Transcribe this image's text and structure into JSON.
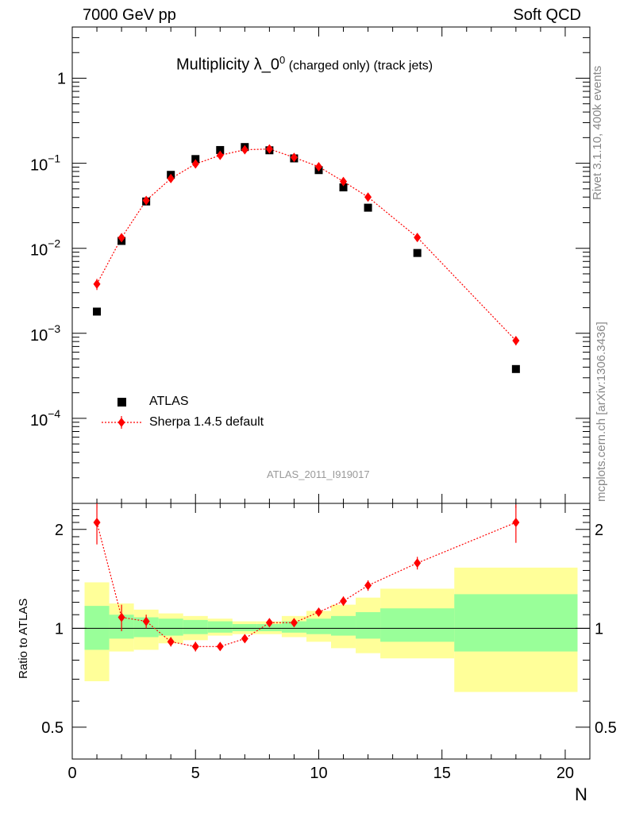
{
  "header": {
    "left": "7000 GeV pp",
    "right": "Soft QCD"
  },
  "side_labels": {
    "upper": "Rivet 3.1.10,  400k events",
    "lower": "mcplots.cern.ch [arXiv:1306.3436]"
  },
  "chart_data": [
    {
      "type": "scatter",
      "panel": "main",
      "title": "Multiplicity λ_0⁰ (charged only) (track jets)",
      "title_parts": {
        "main": "Multiplicity λ_0",
        "sup": "0",
        "rest": " (charged only) (track jets)"
      },
      "watermark": "ATLAS_2011_I919017",
      "xlabel": "N",
      "ylabel": "",
      "yscale": "log",
      "xlim": [
        0,
        21
      ],
      "ylim": [
        1e-05,
        4
      ],
      "y_ticks": [
        {
          "value": 1,
          "mant": "1",
          "exp": ""
        },
        {
          "value": 0.1,
          "mant": "10",
          "exp": "−1"
        },
        {
          "value": 0.01,
          "mant": "10",
          "exp": "−2"
        },
        {
          "value": 0.001,
          "mant": "10",
          "exp": "−3"
        },
        {
          "value": 0.0001,
          "mant": "10",
          "exp": "−4"
        }
      ],
      "legend": {
        "placement": "lower-left",
        "entries": [
          "ATLAS",
          "Sherpa 1.4.5 default"
        ]
      },
      "series": [
        {
          "name": "ATLAS",
          "marker": "square",
          "color": "#000000",
          "x": [
            1,
            2,
            3,
            4,
            5,
            6,
            7,
            8,
            9,
            10,
            11,
            12,
            14,
            18
          ],
          "values": [
            0.0018,
            0.0122,
            0.0355,
            0.073,
            0.112,
            0.143,
            0.155,
            0.142,
            0.114,
            0.083,
            0.052,
            0.03,
            0.0088,
            0.00038
          ]
        },
        {
          "name": "Sherpa 1.4.5 default",
          "marker": "diamond",
          "line": "dotted",
          "color": "#ff0000",
          "x": [
            1,
            2,
            3,
            4,
            5,
            6,
            7,
            8,
            9,
            10,
            11,
            12,
            14,
            18
          ],
          "values": [
            0.0038,
            0.0133,
            0.0365,
            0.066,
            0.098,
            0.124,
            0.144,
            0.147,
            0.117,
            0.091,
            0.061,
            0.04,
            0.0134,
            0.00082
          ],
          "err_rel": [
            0.15,
            0.06,
            0.05,
            0.04,
            0.03,
            0.03,
            0.03,
            0.03,
            0.03,
            0.03,
            0.04,
            0.04,
            0.05,
            0.12
          ]
        }
      ]
    },
    {
      "type": "scatter",
      "panel": "ratio",
      "xlabel": "N",
      "ylabel": "Ratio to ATLAS",
      "yscale": "log",
      "xlim": [
        0,
        21
      ],
      "ylim": [
        0.4,
        2.4
      ],
      "x_ticks": [
        0,
        5,
        10,
        15,
        20
      ],
      "y_ticks": [
        0.5,
        1,
        2
      ],
      "y_tick_labels": [
        "0.5",
        "1",
        "2"
      ],
      "bands": {
        "edges": [
          0.5,
          1.5,
          2.5,
          3.5,
          4.5,
          5.5,
          6.5,
          7.5,
          8.5,
          9.5,
          10.5,
          11.5,
          12.5,
          15.5,
          20.5
        ],
        "inner_lo": [
          0.86,
          0.93,
          0.94,
          0.95,
          0.96,
          0.97,
          0.98,
          0.98,
          0.97,
          0.96,
          0.95,
          0.93,
          0.91,
          0.85
        ],
        "inner_hi": [
          1.17,
          1.1,
          1.08,
          1.07,
          1.06,
          1.05,
          1.03,
          1.03,
          1.05,
          1.07,
          1.09,
          1.12,
          1.15,
          1.27
        ],
        "outer_lo": [
          0.69,
          0.85,
          0.86,
          0.9,
          0.92,
          0.95,
          0.96,
          0.96,
          0.94,
          0.91,
          0.87,
          0.84,
          0.81,
          0.64
        ],
        "outer_hi": [
          1.38,
          1.19,
          1.14,
          1.11,
          1.09,
          1.07,
          1.05,
          1.05,
          1.09,
          1.13,
          1.18,
          1.24,
          1.32,
          1.53
        ],
        "inner_color": "#99ff99",
        "outer_color": "#ffff99"
      },
      "series": [
        {
          "name": "Sherpa 1.4.5 default",
          "color": "#ff0000",
          "x": [
            1,
            2,
            3,
            4,
            5,
            6,
            7,
            8,
            9,
            10,
            11,
            12,
            14,
            18
          ],
          "values": [
            2.1,
            1.08,
            1.05,
            0.91,
            0.88,
            0.88,
            0.93,
            1.04,
            1.04,
            1.12,
            1.21,
            1.35,
            1.58,
            2.1
          ],
          "err_lo": [
            0.3,
            0.1,
            0.05,
            0.03,
            0.03,
            0.02,
            0.02,
            0.02,
            0.02,
            0.03,
            0.04,
            0.05,
            0.07,
            0.28
          ],
          "err_hi": [
            0.3,
            0.1,
            0.05,
            0.03,
            0.03,
            0.02,
            0.02,
            0.02,
            0.02,
            0.03,
            0.04,
            0.05,
            0.07,
            0.28
          ]
        }
      ]
    }
  ]
}
